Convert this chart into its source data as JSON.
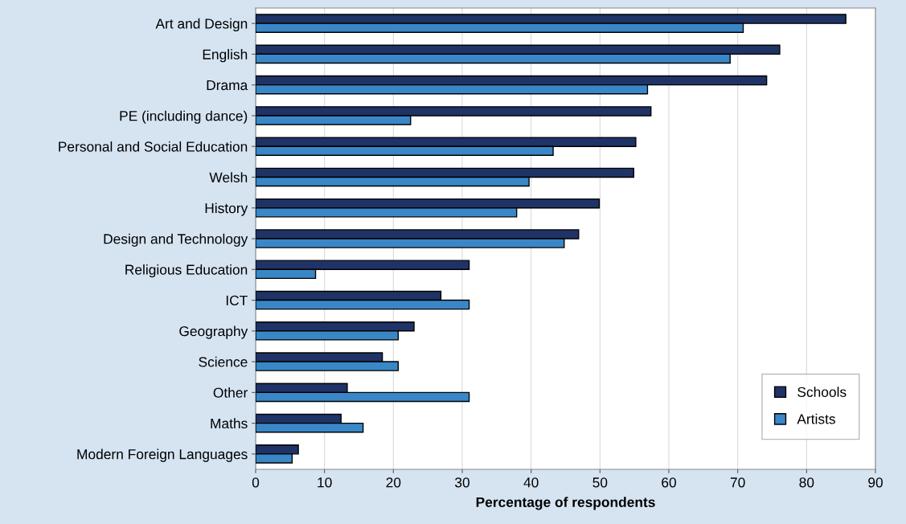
{
  "chart_data": {
    "type": "bar",
    "orientation": "horizontal",
    "xlabel": "Percentage of respondents",
    "categories": [
      "Art and Design",
      "English",
      "Drama",
      "PE (including dance)",
      "Personal and Social Education",
      "Welsh",
      "History",
      "Design and Technology",
      "Religious Education",
      "ICT",
      "Geography",
      "Science",
      "Other",
      "Maths",
      "Modern Foreign Languages"
    ],
    "series": [
      {
        "name": "Schools",
        "color": "#1f3366",
        "values": [
          85.7,
          76.1,
          74.2,
          57.4,
          55.2,
          54.9,
          49.9,
          46.9,
          31.0,
          26.9,
          23.0,
          18.4,
          13.3,
          12.4,
          6.2
        ]
      },
      {
        "name": "Artists",
        "color": "#3a87c8",
        "values": [
          70.8,
          68.9,
          56.9,
          22.5,
          43.2,
          39.7,
          37.9,
          44.8,
          8.7,
          31.0,
          20.7,
          20.7,
          31.0,
          15.6,
          5.3
        ]
      }
    ],
    "xlim": [
      0,
      90
    ],
    "xticks": [
      0,
      10,
      20,
      30,
      40,
      50,
      60,
      70,
      80,
      90
    ],
    "grid": "x",
    "legend": "bottom right"
  }
}
